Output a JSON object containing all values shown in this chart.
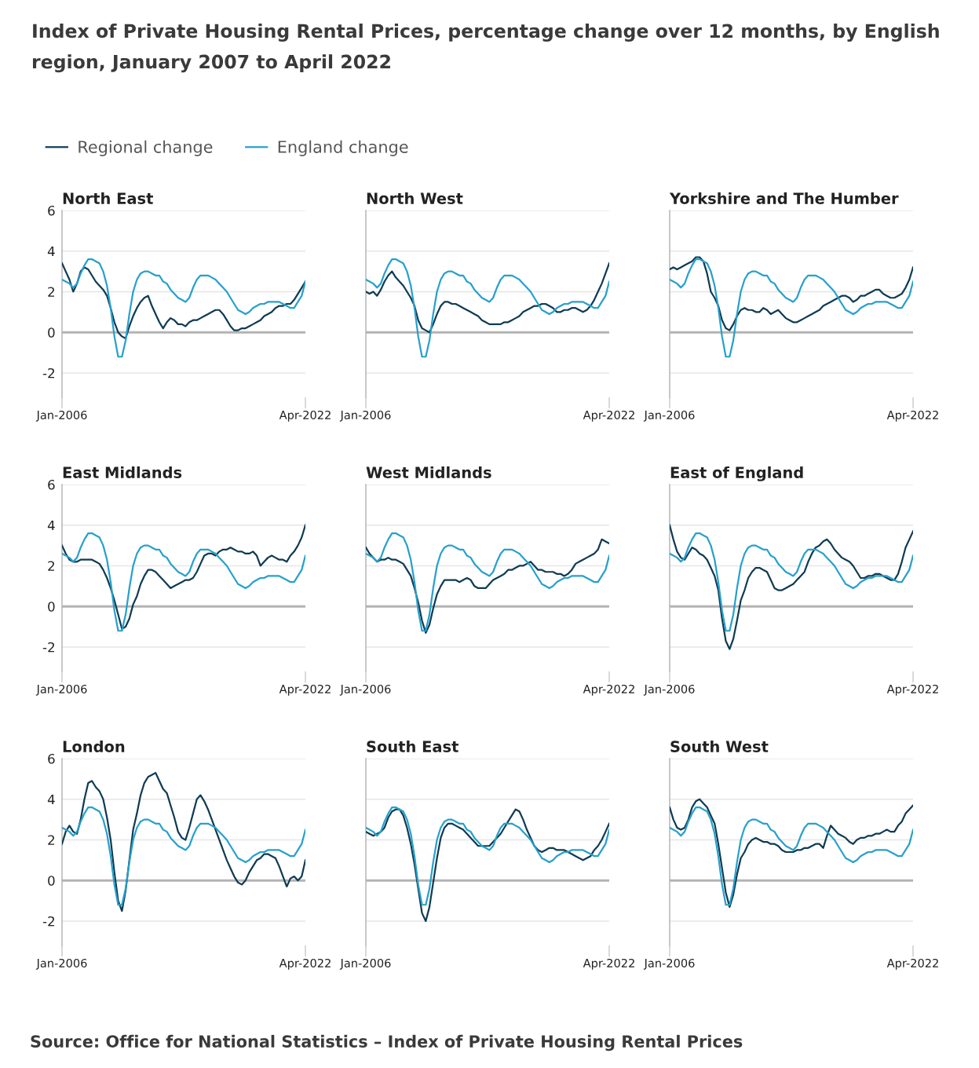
{
  "chart_data": [
    {
      "type": "line",
      "title": "North East",
      "legend": "top",
      "grid": "y",
      "xlim": [
        "2006-01",
        "2022-04"
      ],
      "xticks": [
        {
          "value": "2006-01",
          "label": "Jan-2006"
        },
        {
          "value": "2022-04",
          "label": "Apr-2022"
        }
      ],
      "ylim": [
        -3.2,
        6
      ],
      "yticks": [
        -2,
        0,
        2,
        4,
        6
      ],
      "ref_lines": [
        {
          "axis": "y",
          "value": 0,
          "color": "#b3b3b3"
        }
      ],
      "x": [
        "2006-01",
        "2006-04",
        "2006-07",
        "2006-10",
        "2007-01",
        "2007-04",
        "2007-07",
        "2007-10",
        "2008-01",
        "2008-04",
        "2008-07",
        "2008-10",
        "2009-01",
        "2009-04",
        "2009-07",
        "2009-10",
        "2010-01",
        "2010-04",
        "2010-07",
        "2010-10",
        "2011-01",
        "2011-04",
        "2011-07",
        "2011-10",
        "2012-01",
        "2012-04",
        "2012-07",
        "2012-10",
        "2013-01",
        "2013-04",
        "2013-07",
        "2013-10",
        "2014-01",
        "2014-04",
        "2014-07",
        "2014-10",
        "2015-01",
        "2015-04",
        "2015-07",
        "2015-10",
        "2016-01",
        "2016-04",
        "2016-07",
        "2016-10",
        "2017-01",
        "2017-04",
        "2017-07",
        "2017-10",
        "2018-01",
        "2018-04",
        "2018-07",
        "2018-10",
        "2019-01",
        "2019-04",
        "2019-07",
        "2019-10",
        "2020-01",
        "2020-04",
        "2020-07",
        "2020-10",
        "2021-01",
        "2021-04",
        "2021-07",
        "2021-10",
        "2022-01",
        "2022-04"
      ],
      "series": [
        {
          "name": "Regional change",
          "color": "#0f3b53",
          "values": [
            3.4,
            3.0,
            2.6,
            2.0,
            2.4,
            3.0,
            3.2,
            3.1,
            2.8,
            2.5,
            2.3,
            2.1,
            1.8,
            1.2,
            0.5,
            0.0,
            -0.2,
            -0.3,
            0.3,
            0.8,
            1.2,
            1.5,
            1.7,
            1.8,
            1.3,
            0.9,
            0.5,
            0.2,
            0.5,
            0.7,
            0.6,
            0.4,
            0.4,
            0.3,
            0.5,
            0.6,
            0.6,
            0.7,
            0.8,
            0.9,
            1.0,
            1.1,
            1.1,
            0.9,
            0.6,
            0.3,
            0.1,
            0.1,
            0.2,
            0.2,
            0.3,
            0.4,
            0.5,
            0.6,
            0.8,
            0.9,
            1.0,
            1.2,
            1.3,
            1.3,
            1.4,
            1.4,
            1.6,
            1.9,
            2.2,
            2.5
          ]
        },
        {
          "name": "England change",
          "color": "#27a0cc",
          "values": [
            2.6,
            2.5,
            2.4,
            2.2,
            2.4,
            2.9,
            3.3,
            3.6,
            3.6,
            3.5,
            3.4,
            3.0,
            2.3,
            1.2,
            -0.2,
            -1.2,
            -1.2,
            -0.4,
            0.9,
            2.0,
            2.6,
            2.9,
            3.0,
            3.0,
            2.9,
            2.8,
            2.8,
            2.5,
            2.4,
            2.1,
            1.9,
            1.7,
            1.6,
            1.5,
            1.7,
            2.2,
            2.6,
            2.8,
            2.8,
            2.8,
            2.7,
            2.6,
            2.4,
            2.2,
            2.0,
            1.7,
            1.4,
            1.1,
            1.0,
            0.9,
            1.0,
            1.2,
            1.3,
            1.4,
            1.4,
            1.5,
            1.5,
            1.5,
            1.5,
            1.4,
            1.3,
            1.2,
            1.2,
            1.5,
            1.8,
            2.5
          ]
        }
      ]
    },
    {
      "type": "line",
      "title": "North West",
      "grid": "y",
      "tick_labels": "x",
      "xlim": [
        "2006-01",
        "2022-04"
      ],
      "xticks": [
        {
          "value": "2006-01",
          "label": "Jan-2006"
        },
        {
          "value": "2022-04",
          "label": "Apr-2022"
        }
      ],
      "ylim": [
        -3.2,
        6
      ],
      "yticks": [
        -2,
        0,
        2,
        4,
        6
      ],
      "ref_lines": [
        {
          "axis": "y",
          "value": 0,
          "color": "#b3b3b3"
        }
      ],
      "x": [
        "2006-01",
        "2006-04",
        "2006-07",
        "2006-10",
        "2007-01",
        "2007-04",
        "2007-07",
        "2007-10",
        "2008-01",
        "2008-04",
        "2008-07",
        "2008-10",
        "2009-01",
        "2009-04",
        "2009-07",
        "2009-10",
        "2010-01",
        "2010-04",
        "2010-07",
        "2010-10",
        "2011-01",
        "2011-04",
        "2011-07",
        "2011-10",
        "2012-01",
        "2012-04",
        "2012-07",
        "2012-10",
        "2013-01",
        "2013-04",
        "2013-07",
        "2013-10",
        "2014-01",
        "2014-04",
        "2014-07",
        "2014-10",
        "2015-01",
        "2015-04",
        "2015-07",
        "2015-10",
        "2016-01",
        "2016-04",
        "2016-07",
        "2016-10",
        "2017-01",
        "2017-04",
        "2017-07",
        "2017-10",
        "2018-01",
        "2018-04",
        "2018-07",
        "2018-10",
        "2019-01",
        "2019-04",
        "2019-07",
        "2019-10",
        "2020-01",
        "2020-04",
        "2020-07",
        "2020-10",
        "2021-01",
        "2021-04",
        "2021-07",
        "2021-10",
        "2022-01",
        "2022-04"
      ],
      "series": [
        {
          "color": "#0f3b53",
          "values": [
            2.0,
            1.9,
            2.0,
            1.8,
            2.1,
            2.5,
            2.8,
            3.0,
            2.7,
            2.5,
            2.3,
            2.0,
            1.7,
            1.3,
            0.6,
            0.2,
            0.1,
            0.0,
            0.4,
            0.9,
            1.3,
            1.5,
            1.5,
            1.4,
            1.4,
            1.3,
            1.2,
            1.1,
            1.0,
            0.9,
            0.8,
            0.6,
            0.5,
            0.4,
            0.4,
            0.4,
            0.4,
            0.5,
            0.5,
            0.6,
            0.7,
            0.8,
            1.0,
            1.1,
            1.2,
            1.3,
            1.3,
            1.4,
            1.4,
            1.3,
            1.2,
            1.0,
            1.0,
            1.1,
            1.1,
            1.2,
            1.2,
            1.1,
            1.0,
            1.1,
            1.3,
            1.6,
            2.0,
            2.4,
            2.9,
            3.4
          ]
        },
        {
          "color": "#27a0cc",
          "values": [
            2.6,
            2.5,
            2.4,
            2.2,
            2.4,
            2.9,
            3.3,
            3.6,
            3.6,
            3.5,
            3.4,
            3.0,
            2.3,
            1.2,
            -0.2,
            -1.2,
            -1.2,
            -0.4,
            0.9,
            2.0,
            2.6,
            2.9,
            3.0,
            3.0,
            2.9,
            2.8,
            2.8,
            2.5,
            2.4,
            2.1,
            1.9,
            1.7,
            1.6,
            1.5,
            1.7,
            2.2,
            2.6,
            2.8,
            2.8,
            2.8,
            2.7,
            2.6,
            2.4,
            2.2,
            2.0,
            1.7,
            1.4,
            1.1,
            1.0,
            0.9,
            1.0,
            1.2,
            1.3,
            1.4,
            1.4,
            1.5,
            1.5,
            1.5,
            1.5,
            1.4,
            1.3,
            1.2,
            1.2,
            1.5,
            1.8,
            2.5
          ]
        }
      ]
    },
    {
      "type": "line",
      "title": "Yorkshire and The Humber",
      "grid": "y",
      "tick_labels": "x",
      "xlim": [
        "2006-01",
        "2022-04"
      ],
      "xticks": [
        {
          "value": "2006-01",
          "label": "Jan-2006"
        },
        {
          "value": "2022-04",
          "label": "Apr-2022"
        }
      ],
      "ylim": [
        -3.2,
        6
      ],
      "yticks": [
        -2,
        0,
        2,
        4,
        6
      ],
      "ref_lines": [
        {
          "axis": "y",
          "value": 0,
          "color": "#b3b3b3"
        }
      ],
      "x": [
        "2006-01",
        "2006-04",
        "2006-07",
        "2006-10",
        "2007-01",
        "2007-04",
        "2007-07",
        "2007-10",
        "2008-01",
        "2008-04",
        "2008-07",
        "2008-10",
        "2009-01",
        "2009-04",
        "2009-07",
        "2009-10",
        "2010-01",
        "2010-04",
        "2010-07",
        "2010-10",
        "2011-01",
        "2011-04",
        "2011-07",
        "2011-10",
        "2012-01",
        "2012-04",
        "2012-07",
        "2012-10",
        "2013-01",
        "2013-04",
        "2013-07",
        "2013-10",
        "2014-01",
        "2014-04",
        "2014-07",
        "2014-10",
        "2015-01",
        "2015-04",
        "2015-07",
        "2015-10",
        "2016-01",
        "2016-04",
        "2016-07",
        "2016-10",
        "2017-01",
        "2017-04",
        "2017-07",
        "2017-10",
        "2018-01",
        "2018-04",
        "2018-07",
        "2018-10",
        "2019-01",
        "2019-04",
        "2019-07",
        "2019-10",
        "2020-01",
        "2020-04",
        "2020-07",
        "2020-10",
        "2021-01",
        "2021-04",
        "2021-07",
        "2021-10",
        "2022-01",
        "2022-04"
      ],
      "series": [
        {
          "color": "#0f3b53",
          "values": [
            3.1,
            3.2,
            3.1,
            3.2,
            3.3,
            3.4,
            3.5,
            3.7,
            3.7,
            3.5,
            2.9,
            2.0,
            1.7,
            1.3,
            0.6,
            0.2,
            0.1,
            0.4,
            0.8,
            1.1,
            1.2,
            1.1,
            1.1,
            1.0,
            1.0,
            1.2,
            1.1,
            0.9,
            1.0,
            1.1,
            0.9,
            0.7,
            0.6,
            0.5,
            0.5,
            0.6,
            0.7,
            0.8,
            0.9,
            1.0,
            1.1,
            1.3,
            1.4,
            1.5,
            1.6,
            1.7,
            1.8,
            1.8,
            1.7,
            1.5,
            1.6,
            1.8,
            1.8,
            1.9,
            2.0,
            2.1,
            2.1,
            1.9,
            1.8,
            1.7,
            1.7,
            1.8,
            1.9,
            2.2,
            2.6,
            3.2
          ]
        },
        {
          "color": "#27a0cc",
          "values": [
            2.6,
            2.5,
            2.4,
            2.2,
            2.4,
            2.9,
            3.3,
            3.6,
            3.6,
            3.5,
            3.4,
            3.0,
            2.3,
            1.2,
            -0.2,
            -1.2,
            -1.2,
            -0.4,
            0.9,
            2.0,
            2.6,
            2.9,
            3.0,
            3.0,
            2.9,
            2.8,
            2.8,
            2.5,
            2.4,
            2.1,
            1.9,
            1.7,
            1.6,
            1.5,
            1.7,
            2.2,
            2.6,
            2.8,
            2.8,
            2.8,
            2.7,
            2.6,
            2.4,
            2.2,
            2.0,
            1.7,
            1.4,
            1.1,
            1.0,
            0.9,
            1.0,
            1.2,
            1.3,
            1.4,
            1.4,
            1.5,
            1.5,
            1.5,
            1.5,
            1.4,
            1.3,
            1.2,
            1.2,
            1.5,
            1.8,
            2.5
          ]
        }
      ]
    },
    {
      "type": "line",
      "title": "East Midlands",
      "grid": "y",
      "xlim": [
        "2006-01",
        "2022-04"
      ],
      "xticks": [
        {
          "value": "2006-01",
          "label": "Jan-2006"
        },
        {
          "value": "2022-04",
          "label": "Apr-2022"
        }
      ],
      "ylim": [
        -3.2,
        6
      ],
      "yticks": [
        -2,
        0,
        2,
        4,
        6
      ],
      "ref_lines": [
        {
          "axis": "y",
          "value": 0,
          "color": "#b3b3b3"
        }
      ],
      "x": [
        "2006-01",
        "2006-04",
        "2006-07",
        "2006-10",
        "2007-01",
        "2007-04",
        "2007-07",
        "2007-10",
        "2008-01",
        "2008-04",
        "2008-07",
        "2008-10",
        "2009-01",
        "2009-04",
        "2009-07",
        "2009-10",
        "2010-01",
        "2010-04",
        "2010-07",
        "2010-10",
        "2011-01",
        "2011-04",
        "2011-07",
        "2011-10",
        "2012-01",
        "2012-04",
        "2012-07",
        "2012-10",
        "2013-01",
        "2013-04",
        "2013-07",
        "2013-10",
        "2014-01",
        "2014-04",
        "2014-07",
        "2014-10",
        "2015-01",
        "2015-04",
        "2015-07",
        "2015-10",
        "2016-01",
        "2016-04",
        "2016-07",
        "2016-10",
        "2017-01",
        "2017-04",
        "2017-07",
        "2017-10",
        "2018-01",
        "2018-04",
        "2018-07",
        "2018-10",
        "2019-01",
        "2019-04",
        "2019-07",
        "2019-10",
        "2020-01",
        "2020-04",
        "2020-07",
        "2020-10",
        "2021-01",
        "2021-04",
        "2021-07",
        "2021-10",
        "2022-01",
        "2022-04"
      ],
      "series": [
        {
          "color": "#0f3b53",
          "values": [
            3.0,
            2.6,
            2.3,
            2.2,
            2.2,
            2.3,
            2.3,
            2.3,
            2.3,
            2.2,
            2.1,
            1.8,
            1.4,
            0.9,
            0.3,
            -0.4,
            -1.1,
            -1.0,
            -0.6,
            0.1,
            0.5,
            1.1,
            1.5,
            1.8,
            1.8,
            1.7,
            1.5,
            1.3,
            1.1,
            0.9,
            1.0,
            1.1,
            1.2,
            1.3,
            1.3,
            1.4,
            1.7,
            2.1,
            2.5,
            2.6,
            2.6,
            2.5,
            2.7,
            2.8,
            2.8,
            2.9,
            2.8,
            2.7,
            2.7,
            2.6,
            2.6,
            2.7,
            2.5,
            2.0,
            2.2,
            2.4,
            2.5,
            2.4,
            2.3,
            2.3,
            2.2,
            2.5,
            2.7,
            3.0,
            3.4,
            4.0
          ]
        },
        {
          "color": "#27a0cc",
          "values": [
            2.6,
            2.5,
            2.4,
            2.2,
            2.4,
            2.9,
            3.3,
            3.6,
            3.6,
            3.5,
            3.4,
            3.0,
            2.3,
            1.2,
            -0.2,
            -1.2,
            -1.2,
            -0.4,
            0.9,
            2.0,
            2.6,
            2.9,
            3.0,
            3.0,
            2.9,
            2.8,
            2.8,
            2.5,
            2.4,
            2.1,
            1.9,
            1.7,
            1.6,
            1.5,
            1.7,
            2.2,
            2.6,
            2.8,
            2.8,
            2.8,
            2.7,
            2.6,
            2.4,
            2.2,
            2.0,
            1.7,
            1.4,
            1.1,
            1.0,
            0.9,
            1.0,
            1.2,
            1.3,
            1.4,
            1.4,
            1.5,
            1.5,
            1.5,
            1.5,
            1.4,
            1.3,
            1.2,
            1.2,
            1.5,
            1.8,
            2.5
          ]
        }
      ]
    },
    {
      "type": "line",
      "title": "West Midlands",
      "grid": "y",
      "tick_labels": "x",
      "xlim": [
        "2006-01",
        "2022-04"
      ],
      "xticks": [
        {
          "value": "2006-01",
          "label": "Jan-2006"
        },
        {
          "value": "2022-04",
          "label": "Apr-2022"
        }
      ],
      "ylim": [
        -3.2,
        6
      ],
      "yticks": [
        -2,
        0,
        2,
        4,
        6
      ],
      "ref_lines": [
        {
          "axis": "y",
          "value": 0,
          "color": "#b3b3b3"
        }
      ],
      "x": [
        "2006-01",
        "2006-04",
        "2006-07",
        "2006-10",
        "2007-01",
        "2007-04",
        "2007-07",
        "2007-10",
        "2008-01",
        "2008-04",
        "2008-07",
        "2008-10",
        "2009-01",
        "2009-04",
        "2009-07",
        "2009-10",
        "2010-01",
        "2010-04",
        "2010-07",
        "2010-10",
        "2011-01",
        "2011-04",
        "2011-07",
        "2011-10",
        "2012-01",
        "2012-04",
        "2012-07",
        "2012-10",
        "2013-01",
        "2013-04",
        "2013-07",
        "2013-10",
        "2014-01",
        "2014-04",
        "2014-07",
        "2014-10",
        "2015-01",
        "2015-04",
        "2015-07",
        "2015-10",
        "2016-01",
        "2016-04",
        "2016-07",
        "2016-10",
        "2017-01",
        "2017-04",
        "2017-07",
        "2017-10",
        "2018-01",
        "2018-04",
        "2018-07",
        "2018-10",
        "2019-01",
        "2019-04",
        "2019-07",
        "2019-10",
        "2020-01",
        "2020-04",
        "2020-07",
        "2020-10",
        "2021-01",
        "2021-04",
        "2021-07",
        "2021-10",
        "2022-01",
        "2022-04"
      ],
      "series": [
        {
          "color": "#0f3b53",
          "values": [
            2.9,
            2.6,
            2.4,
            2.2,
            2.3,
            2.3,
            2.4,
            2.3,
            2.3,
            2.2,
            2.1,
            1.8,
            1.5,
            0.9,
            0.2,
            -0.7,
            -1.3,
            -0.9,
            -0.1,
            0.6,
            1.0,
            1.3,
            1.3,
            1.3,
            1.3,
            1.2,
            1.3,
            1.4,
            1.3,
            1.0,
            0.9,
            0.9,
            0.9,
            1.1,
            1.3,
            1.4,
            1.5,
            1.6,
            1.8,
            1.8,
            1.9,
            2.0,
            2.0,
            2.1,
            2.2,
            2.0,
            1.8,
            1.8,
            1.7,
            1.7,
            1.7,
            1.6,
            1.6,
            1.5,
            1.6,
            1.8,
            2.1,
            2.2,
            2.3,
            2.4,
            2.5,
            2.6,
            2.8,
            3.3,
            3.2,
            3.1
          ]
        },
        {
          "color": "#27a0cc",
          "values": [
            2.6,
            2.5,
            2.4,
            2.2,
            2.4,
            2.9,
            3.3,
            3.6,
            3.6,
            3.5,
            3.4,
            3.0,
            2.3,
            1.2,
            -0.2,
            -1.2,
            -1.2,
            -0.4,
            0.9,
            2.0,
            2.6,
            2.9,
            3.0,
            3.0,
            2.9,
            2.8,
            2.8,
            2.5,
            2.4,
            2.1,
            1.9,
            1.7,
            1.6,
            1.5,
            1.7,
            2.2,
            2.6,
            2.8,
            2.8,
            2.8,
            2.7,
            2.6,
            2.4,
            2.2,
            2.0,
            1.7,
            1.4,
            1.1,
            1.0,
            0.9,
            1.0,
            1.2,
            1.3,
            1.4,
            1.4,
            1.5,
            1.5,
            1.5,
            1.5,
            1.4,
            1.3,
            1.2,
            1.2,
            1.5,
            1.8,
            2.5
          ]
        }
      ]
    },
    {
      "type": "line",
      "title": "East of England",
      "grid": "y",
      "tick_labels": "x",
      "xlim": [
        "2006-01",
        "2022-04"
      ],
      "xticks": [
        {
          "value": "2006-01",
          "label": "Jan-2006"
        },
        {
          "value": "2022-04",
          "label": "Apr-2022"
        }
      ],
      "ylim": [
        -3.2,
        6
      ],
      "yticks": [
        -2,
        0,
        2,
        4,
        6
      ],
      "ref_lines": [
        {
          "axis": "y",
          "value": 0,
          "color": "#b3b3b3"
        }
      ],
      "x": [
        "2006-01",
        "2006-04",
        "2006-07",
        "2006-10",
        "2007-01",
        "2007-04",
        "2007-07",
        "2007-10",
        "2008-01",
        "2008-04",
        "2008-07",
        "2008-10",
        "2009-01",
        "2009-04",
        "2009-07",
        "2009-10",
        "2010-01",
        "2010-04",
        "2010-07",
        "2010-10",
        "2011-01",
        "2011-04",
        "2011-07",
        "2011-10",
        "2012-01",
        "2012-04",
        "2012-07",
        "2012-10",
        "2013-01",
        "2013-04",
        "2013-07",
        "2013-10",
        "2014-01",
        "2014-04",
        "2014-07",
        "2014-10",
        "2015-01",
        "2015-04",
        "2015-07",
        "2015-10",
        "2016-01",
        "2016-04",
        "2016-07",
        "2016-10",
        "2017-01",
        "2017-04",
        "2017-07",
        "2017-10",
        "2018-01",
        "2018-04",
        "2018-07",
        "2018-10",
        "2019-01",
        "2019-04",
        "2019-07",
        "2019-10",
        "2020-01",
        "2020-04",
        "2020-07",
        "2020-10",
        "2021-01",
        "2021-04",
        "2021-07",
        "2021-10",
        "2022-01",
        "2022-04"
      ],
      "series": [
        {
          "color": "#0f3b53",
          "values": [
            4.0,
            3.3,
            2.7,
            2.4,
            2.3,
            2.6,
            2.9,
            2.8,
            2.6,
            2.5,
            2.3,
            1.9,
            1.5,
            0.8,
            -0.6,
            -1.7,
            -2.1,
            -1.6,
            -0.7,
            0.3,
            0.8,
            1.4,
            1.7,
            1.9,
            1.9,
            1.8,
            1.7,
            1.3,
            0.9,
            0.8,
            0.8,
            0.9,
            1.0,
            1.1,
            1.3,
            1.5,
            1.7,
            2.2,
            2.6,
            2.9,
            3.0,
            3.2,
            3.3,
            3.1,
            2.8,
            2.6,
            2.4,
            2.3,
            2.2,
            2.0,
            1.7,
            1.4,
            1.4,
            1.5,
            1.5,
            1.6,
            1.6,
            1.5,
            1.4,
            1.3,
            1.3,
            1.6,
            2.2,
            2.9,
            3.3,
            3.7
          ]
        },
        {
          "color": "#27a0cc",
          "values": [
            2.6,
            2.5,
            2.4,
            2.2,
            2.4,
            2.9,
            3.3,
            3.6,
            3.6,
            3.5,
            3.4,
            3.0,
            2.3,
            1.2,
            -0.2,
            -1.2,
            -1.2,
            -0.4,
            0.9,
            2.0,
            2.6,
            2.9,
            3.0,
            3.0,
            2.9,
            2.8,
            2.8,
            2.5,
            2.4,
            2.1,
            1.9,
            1.7,
            1.6,
            1.5,
            1.7,
            2.2,
            2.6,
            2.8,
            2.8,
            2.8,
            2.7,
            2.6,
            2.4,
            2.2,
            2.0,
            1.7,
            1.4,
            1.1,
            1.0,
            0.9,
            1.0,
            1.2,
            1.3,
            1.4,
            1.4,
            1.5,
            1.5,
            1.5,
            1.5,
            1.4,
            1.3,
            1.2,
            1.2,
            1.5,
            1.8,
            2.5
          ]
        }
      ]
    },
    {
      "type": "line",
      "title": "London",
      "grid": "y",
      "xlim": [
        "2006-01",
        "2022-04"
      ],
      "xticks": [
        {
          "value": "2006-01",
          "label": "Jan-2006"
        },
        {
          "value": "2022-04",
          "label": "Apr-2022"
        }
      ],
      "ylim": [
        -3.2,
        6
      ],
      "yticks": [
        -2,
        0,
        2,
        4,
        6
      ],
      "ref_lines": [
        {
          "axis": "y",
          "value": 0,
          "color": "#b3b3b3"
        }
      ],
      "x": [
        "2006-01",
        "2006-04",
        "2006-07",
        "2006-10",
        "2007-01",
        "2007-04",
        "2007-07",
        "2007-10",
        "2008-01",
        "2008-04",
        "2008-07",
        "2008-10",
        "2009-01",
        "2009-04",
        "2009-07",
        "2009-10",
        "2010-01",
        "2010-04",
        "2010-07",
        "2010-10",
        "2011-01",
        "2011-04",
        "2011-07",
        "2011-10",
        "2012-01",
        "2012-04",
        "2012-07",
        "2012-10",
        "2013-01",
        "2013-04",
        "2013-07",
        "2013-10",
        "2014-01",
        "2014-04",
        "2014-07",
        "2014-10",
        "2015-01",
        "2015-04",
        "2015-07",
        "2015-10",
        "2016-01",
        "2016-04",
        "2016-07",
        "2016-10",
        "2017-01",
        "2017-04",
        "2017-07",
        "2017-10",
        "2018-01",
        "2018-04",
        "2018-07",
        "2018-10",
        "2019-01",
        "2019-04",
        "2019-07",
        "2019-10",
        "2020-01",
        "2020-04",
        "2020-07",
        "2020-10",
        "2021-01",
        "2021-04",
        "2021-07",
        "2021-10",
        "2022-01",
        "2022-04"
      ],
      "series": [
        {
          "color": "#0f3b53",
          "values": [
            1.8,
            2.4,
            2.7,
            2.4,
            2.3,
            3.0,
            4.0,
            4.8,
            4.9,
            4.6,
            4.4,
            4.0,
            3.1,
            2.0,
            0.4,
            -1.0,
            -1.5,
            -0.5,
            1.0,
            2.5,
            3.3,
            4.2,
            4.8,
            5.1,
            5.2,
            5.3,
            4.9,
            4.5,
            4.3,
            3.7,
            3.1,
            2.4,
            2.1,
            2.0,
            2.6,
            3.3,
            4.0,
            4.2,
            3.9,
            3.5,
            3.0,
            2.5,
            2.0,
            1.5,
            1.0,
            0.6,
            0.2,
            -0.1,
            -0.2,
            0.0,
            0.4,
            0.7,
            1.0,
            1.1,
            1.3,
            1.3,
            1.2,
            1.1,
            0.7,
            0.2,
            -0.3,
            0.1,
            0.2,
            0.0,
            0.2,
            1.0
          ]
        },
        {
          "color": "#27a0cc",
          "values": [
            2.6,
            2.5,
            2.4,
            2.2,
            2.4,
            2.9,
            3.3,
            3.6,
            3.6,
            3.5,
            3.4,
            3.0,
            2.3,
            1.2,
            -0.2,
            -1.2,
            -1.2,
            -0.4,
            0.9,
            2.0,
            2.6,
            2.9,
            3.0,
            3.0,
            2.9,
            2.8,
            2.8,
            2.5,
            2.4,
            2.1,
            1.9,
            1.7,
            1.6,
            1.5,
            1.7,
            2.2,
            2.6,
            2.8,
            2.8,
            2.8,
            2.7,
            2.6,
            2.4,
            2.2,
            2.0,
            1.7,
            1.4,
            1.1,
            1.0,
            0.9,
            1.0,
            1.2,
            1.3,
            1.4,
            1.4,
            1.5,
            1.5,
            1.5,
            1.5,
            1.4,
            1.3,
            1.2,
            1.2,
            1.5,
            1.8,
            2.5
          ]
        }
      ]
    },
    {
      "type": "line",
      "title": "South East",
      "grid": "y",
      "tick_labels": "x",
      "xlim": [
        "2006-01",
        "2022-04"
      ],
      "xticks": [
        {
          "value": "2006-01",
          "label": "Jan-2006"
        },
        {
          "value": "2022-04",
          "label": "Apr-2022"
        }
      ],
      "ylim": [
        -3.2,
        6
      ],
      "yticks": [
        -2,
        0,
        2,
        4,
        6
      ],
      "ref_lines": [
        {
          "axis": "y",
          "value": 0,
          "color": "#b3b3b3"
        }
      ],
      "x": [
        "2006-01",
        "2006-04",
        "2006-07",
        "2006-10",
        "2007-01",
        "2007-04",
        "2007-07",
        "2007-10",
        "2008-01",
        "2008-04",
        "2008-07",
        "2008-10",
        "2009-01",
        "2009-04",
        "2009-07",
        "2009-10",
        "2010-01",
        "2010-04",
        "2010-07",
        "2010-10",
        "2011-01",
        "2011-04",
        "2011-07",
        "2011-10",
        "2012-01",
        "2012-04",
        "2012-07",
        "2012-10",
        "2013-01",
        "2013-04",
        "2013-07",
        "2013-10",
        "2014-01",
        "2014-04",
        "2014-07",
        "2014-10",
        "2015-01",
        "2015-04",
        "2015-07",
        "2015-10",
        "2016-01",
        "2016-04",
        "2016-07",
        "2016-10",
        "2017-01",
        "2017-04",
        "2017-07",
        "2017-10",
        "2018-01",
        "2018-04",
        "2018-07",
        "2018-10",
        "2019-01",
        "2019-04",
        "2019-07",
        "2019-10",
        "2020-01",
        "2020-04",
        "2020-07",
        "2020-10",
        "2021-01",
        "2021-04",
        "2021-07",
        "2021-10",
        "2022-01",
        "2022-04"
      ],
      "series": [
        {
          "color": "#0f3b53",
          "values": [
            2.4,
            2.3,
            2.2,
            2.3,
            2.4,
            2.6,
            3.1,
            3.4,
            3.5,
            3.5,
            3.2,
            2.6,
            1.8,
            0.8,
            -0.4,
            -1.6,
            -2.0,
            -1.3,
            -0.1,
            1.1,
            2.1,
            2.6,
            2.8,
            2.8,
            2.7,
            2.6,
            2.5,
            2.3,
            2.1,
            1.9,
            1.7,
            1.7,
            1.7,
            1.7,
            1.9,
            2.1,
            2.3,
            2.6,
            2.9,
            3.2,
            3.5,
            3.4,
            3.0,
            2.5,
            2.1,
            1.7,
            1.5,
            1.4,
            1.5,
            1.6,
            1.6,
            1.5,
            1.5,
            1.5,
            1.4,
            1.3,
            1.2,
            1.1,
            1.0,
            1.1,
            1.2,
            1.5,
            1.7,
            2.0,
            2.4,
            2.8
          ]
        },
        {
          "color": "#27a0cc",
          "values": [
            2.6,
            2.5,
            2.4,
            2.2,
            2.4,
            2.9,
            3.3,
            3.6,
            3.6,
            3.5,
            3.4,
            3.0,
            2.3,
            1.2,
            -0.2,
            -1.2,
            -1.2,
            -0.4,
            0.9,
            2.0,
            2.6,
            2.9,
            3.0,
            3.0,
            2.9,
            2.8,
            2.8,
            2.5,
            2.4,
            2.1,
            1.9,
            1.7,
            1.6,
            1.5,
            1.7,
            2.2,
            2.6,
            2.8,
            2.8,
            2.8,
            2.7,
            2.6,
            2.4,
            2.2,
            2.0,
            1.7,
            1.4,
            1.1,
            1.0,
            0.9,
            1.0,
            1.2,
            1.3,
            1.4,
            1.4,
            1.5,
            1.5,
            1.5,
            1.5,
            1.4,
            1.3,
            1.2,
            1.2,
            1.5,
            1.8,
            2.5
          ]
        }
      ]
    },
    {
      "type": "line",
      "title": "South West",
      "grid": "y",
      "tick_labels": "x",
      "xlim": [
        "2006-01",
        "2022-04"
      ],
      "xticks": [
        {
          "value": "2006-01",
          "label": "Jan-2006"
        },
        {
          "value": "2022-04",
          "label": "Apr-2022"
        }
      ],
      "ylim": [
        -3.2,
        6
      ],
      "yticks": [
        -2,
        0,
        2,
        4,
        6
      ],
      "ref_lines": [
        {
          "axis": "y",
          "value": 0,
          "color": "#b3b3b3"
        }
      ],
      "x": [
        "2006-01",
        "2006-04",
        "2006-07",
        "2006-10",
        "2007-01",
        "2007-04",
        "2007-07",
        "2007-10",
        "2008-01",
        "2008-04",
        "2008-07",
        "2008-10",
        "2009-01",
        "2009-04",
        "2009-07",
        "2009-10",
        "2010-01",
        "2010-04",
        "2010-07",
        "2010-10",
        "2011-01",
        "2011-04",
        "2011-07",
        "2011-10",
        "2012-01",
        "2012-04",
        "2012-07",
        "2012-10",
        "2013-01",
        "2013-04",
        "2013-07",
        "2013-10",
        "2014-01",
        "2014-04",
        "2014-07",
        "2014-10",
        "2015-01",
        "2015-04",
        "2015-07",
        "2015-10",
        "2016-01",
        "2016-04",
        "2016-07",
        "2016-10",
        "2017-01",
        "2017-04",
        "2017-07",
        "2017-10",
        "2018-01",
        "2018-04",
        "2018-07",
        "2018-10",
        "2019-01",
        "2019-04",
        "2019-07",
        "2019-10",
        "2020-01",
        "2020-04",
        "2020-07",
        "2020-10",
        "2021-01",
        "2021-04",
        "2021-07",
        "2021-10",
        "2022-01",
        "2022-04"
      ],
      "series": [
        {
          "color": "#0f3b53",
          "values": [
            3.6,
            3.0,
            2.6,
            2.5,
            2.6,
            3.0,
            3.6,
            3.9,
            4.0,
            3.8,
            3.6,
            3.2,
            2.8,
            1.8,
            0.6,
            -0.6,
            -1.3,
            -0.7,
            0.3,
            1.1,
            1.4,
            1.8,
            2.0,
            2.1,
            2.0,
            1.9,
            1.9,
            1.8,
            1.8,
            1.7,
            1.5,
            1.4,
            1.4,
            1.4,
            1.5,
            1.5,
            1.6,
            1.6,
            1.7,
            1.8,
            1.8,
            1.6,
            2.2,
            2.7,
            2.5,
            2.3,
            2.2,
            2.1,
            1.9,
            1.8,
            2.0,
            2.1,
            2.1,
            2.2,
            2.2,
            2.3,
            2.3,
            2.4,
            2.5,
            2.4,
            2.4,
            2.7,
            2.9,
            3.3,
            3.5,
            3.7
          ]
        },
        {
          "color": "#27a0cc",
          "values": [
            2.6,
            2.5,
            2.4,
            2.2,
            2.4,
            2.9,
            3.3,
            3.6,
            3.6,
            3.5,
            3.4,
            3.0,
            2.3,
            1.2,
            -0.2,
            -1.2,
            -1.2,
            -0.4,
            0.9,
            2.0,
            2.6,
            2.9,
            3.0,
            3.0,
            2.9,
            2.8,
            2.8,
            2.5,
            2.4,
            2.1,
            1.9,
            1.7,
            1.6,
            1.5,
            1.7,
            2.2,
            2.6,
            2.8,
            2.8,
            2.8,
            2.7,
            2.6,
            2.4,
            2.2,
            2.0,
            1.7,
            1.4,
            1.1,
            1.0,
            0.9,
            1.0,
            1.2,
            1.3,
            1.4,
            1.4,
            1.5,
            1.5,
            1.5,
            1.5,
            1.4,
            1.3,
            1.2,
            1.2,
            1.5,
            1.8,
            2.5
          ]
        }
      ]
    },
    {
      "type": "other",
      "title": "Index of Private Housing Rental Prices, percentage change over 12 months, by English region, January 2007 to April 2022",
      "annotations": [
        "Source: Office for National Statistics – Index of Private Housing Rental Prices"
      ]
    }
  ]
}
